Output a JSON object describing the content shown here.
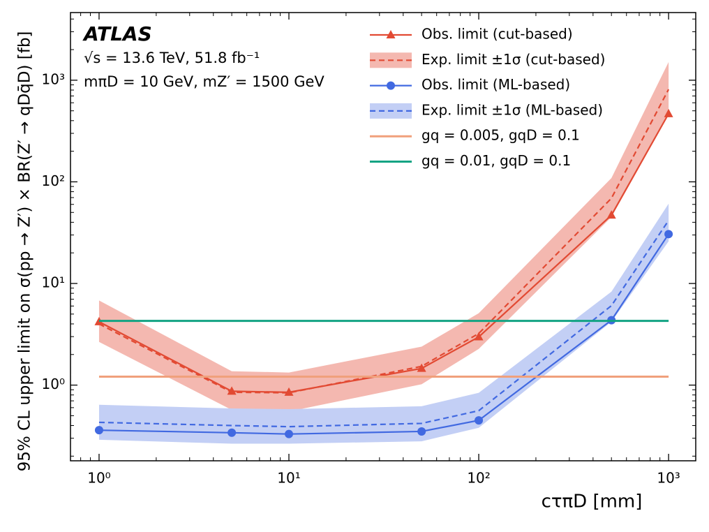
{
  "chart_data": {
    "type": "line",
    "xlabel": "cτπD [mm]",
    "ylabel": "95% CL upper limit on σ(pp → Z′) × BR(Z′ → qDq̄D) [fb]",
    "annotations": [
      "ATLAS",
      "√s = 13.6 TeV, 51.8 fb⁻¹",
      "mπD = 10 GeV, mZ′ = 1500 GeV"
    ],
    "x": [
      1,
      5,
      10,
      50,
      100,
      500,
      1000
    ],
    "xlog": true,
    "ylog": true,
    "xlim": [
      0.707,
      1390
    ],
    "ylim": [
      0.18,
      4630
    ],
    "xticks": [
      {
        "value": 1,
        "label": "10⁰"
      },
      {
        "value": 10,
        "label": "10¹"
      },
      {
        "value": 100,
        "label": "10²"
      },
      {
        "value": 1000,
        "label": "10³"
      }
    ],
    "yticks": [
      {
        "value": 1,
        "label": "10⁰"
      },
      {
        "value": 10,
        "label": "10¹"
      },
      {
        "value": 100,
        "label": "10²"
      },
      {
        "value": 1000,
        "label": "10³"
      }
    ],
    "xminorticks": [
      0.8,
      0.9,
      2,
      3,
      4,
      5,
      6,
      7,
      8,
      9,
      20,
      30,
      40,
      50,
      60,
      70,
      80,
      90,
      200,
      300,
      400,
      500,
      600,
      700,
      800,
      900
    ],
    "yminorticks": [
      0.2,
      0.3,
      0.4,
      0.5,
      0.6,
      0.7,
      0.8,
      0.9,
      2,
      3,
      4,
      5,
      6,
      7,
      8,
      9,
      20,
      30,
      40,
      50,
      60,
      70,
      80,
      90,
      200,
      300,
      400,
      500,
      600,
      700,
      800,
      900,
      2000,
      3000,
      4000
    ],
    "legend": "upper right",
    "series": [
      {
        "name": "Obs. limit (cut-based)",
        "kind": "observed",
        "marker": "triangle",
        "color": "#e24a33",
        "values": [
          4.2,
          0.87,
          0.85,
          1.46,
          2.98,
          47,
          468
        ]
      },
      {
        "name": "Exp. limit ±1σ (cut-based)",
        "kind": "expected",
        "color": "#e24a33",
        "band_color": "#f4b8b0",
        "values": [
          4.0,
          0.85,
          0.84,
          1.53,
          3.22,
          69,
          813
        ],
        "lower": [
          2.66,
          0.57,
          0.55,
          1.02,
          2.27,
          45,
          455
        ],
        "upper": [
          6.8,
          1.37,
          1.33,
          2.39,
          5.1,
          109,
          1510
        ]
      },
      {
        "name": "Obs. limit (ML-based)",
        "kind": "observed",
        "marker": "circle",
        "color": "#4169e1",
        "values": [
          0.36,
          0.34,
          0.33,
          0.35,
          0.45,
          4.35,
          30.6
        ]
      },
      {
        "name": "Exp. limit ±1σ (ML-based)",
        "kind": "expected",
        "color": "#4169e1",
        "band_color": "#c3cff5",
        "values": [
          0.43,
          0.4,
          0.39,
          0.42,
          0.56,
          6.05,
          41.7
        ],
        "lower": [
          0.29,
          0.265,
          0.265,
          0.28,
          0.38,
          4.2,
          26
        ],
        "upper": [
          0.64,
          0.59,
          0.58,
          0.62,
          0.84,
          8.3,
          61
        ]
      },
      {
        "name": "gq = 0.005, gqD = 0.1",
        "kind": "reference",
        "color": "#f0a07c",
        "x": [
          1,
          1000
        ],
        "values": [
          1.21,
          1.21
        ]
      },
      {
        "name": "gq = 0.01, gqD = 0.1",
        "kind": "reference",
        "color": "#12a383",
        "x": [
          1,
          1000
        ],
        "values": [
          4.28,
          4.28
        ]
      }
    ]
  }
}
